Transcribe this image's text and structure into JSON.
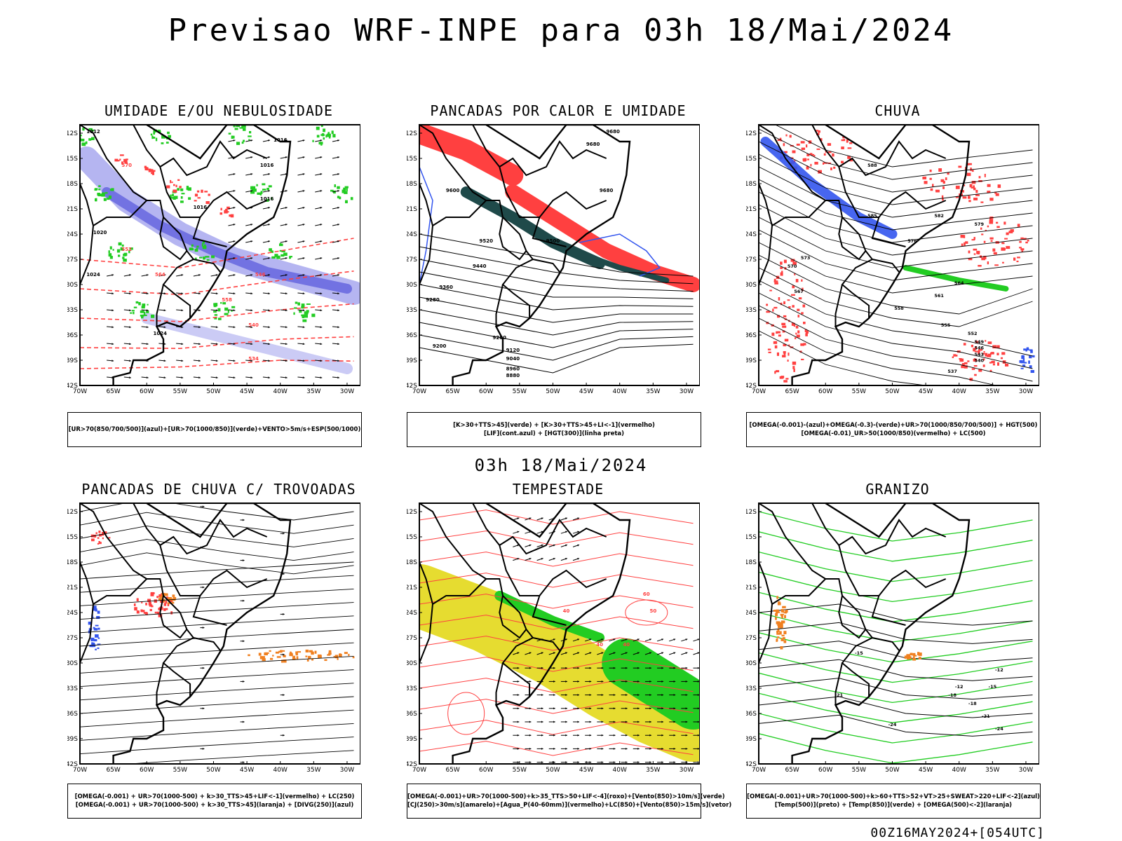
{
  "header": {
    "title": "Previsao WRF-INPE  para 03h 18/Mai/2024"
  },
  "mid_label": "03h 18/Mai/2024",
  "footer": "00Z16MAY2024+[054UTC]",
  "colors": {
    "green": "#22cc22",
    "red": "#ff4040",
    "blue": "#3355ee",
    "lavender": "#a8a8ee",
    "teal": "#1f4a4a",
    "orange": "#f08020",
    "yellow": "#e6dc30",
    "black": "#000000"
  },
  "axes": {
    "lat_labels": [
      "12S",
      "15S",
      "18S",
      "21S",
      "24S",
      "27S",
      "30S",
      "33S",
      "36S",
      "39S",
      "42S"
    ],
    "lon_labels": [
      "70W",
      "65W",
      "60W",
      "55W",
      "50W",
      "45W",
      "40W",
      "35W",
      "30W"
    ]
  },
  "panels": [
    {
      "id": "umidade",
      "title": "UMIDADE E/OU NEBULOSIDADE",
      "legend": [
        "[UR>70(850/700/500)](azul)+[UR>70(1000/850)](verde)+VENTO>5m/s+ESP(500/1000)"
      ],
      "contour_labels": [
        "1016",
        "1016",
        "1016",
        "1016",
        "1012",
        "1020",
        "1024",
        "1024",
        "570",
        "552",
        "564",
        "546",
        "558",
        "540",
        "534"
      ]
    },
    {
      "id": "pancadas",
      "title": "PANCADAS POR CALOR E UMIDADE",
      "legend": [
        "[K>30+TTS>45](verde) + [K>30+TTS>45+LI<-1](vermelho)",
        "[LIF](cont.azul) + [HGT(300)](linha preta)"
      ],
      "contour_labels": [
        "9680",
        "9680",
        "9680",
        "9600",
        "9520",
        "9440",
        "9360",
        "9280",
        "9200",
        "9120",
        "9040",
        "8960",
        "8880",
        "9500",
        "9200"
      ]
    },
    {
      "id": "chuva",
      "title": "CHUVA",
      "legend": [
        "[OMEGA(-0.001)-(azul)+OMEGA(-0.3)-(verde)+UR>70(1000/850/700/500)] + HGT(500)",
        "[OMEGA(-0.01)_UR>50(1000/850)(vermelho) + LC(500)"
      ],
      "contour_labels": [
        "588",
        "585",
        "582",
        "579",
        "576",
        "573",
        "570",
        "567",
        "564",
        "561",
        "558",
        "555",
        "552",
        "549",
        "546",
        "543",
        "540",
        "537"
      ]
    },
    {
      "id": "trovoadas",
      "title": "PANCADAS DE CHUVA C/ TROVOADAS",
      "legend": [
        "[OMEGA(-0.001) + UR>70(1000-500) + k>30_TTS>45+LIF<-1](vermelho) + LC(250)",
        "[OMEGA(-0.001) + UR>70(1000-500) + k>30_TTS>45](laranja) + [DIVG(250)](azul)"
      ],
      "contour_labels": []
    },
    {
      "id": "tempestade",
      "title": "TEMPESTADE",
      "legend": [
        "[OMEGA(-0.001)+UR>70(1000-500)+k>35_TTS>50+LIF<-4](roxo)+[Vento(850)>10m/s](verde)",
        "[CJ(250)>30m/s](amarelo)+[Agua_P(40-60mm)](vermelho)+LC(850)+[Vento(850)>15m/s](vetor)"
      ],
      "contour_labels": [
        "40",
        "40",
        "40",
        "60",
        "50"
      ]
    },
    {
      "id": "granizo",
      "title": "GRANIZO",
      "legend": [
        "[OMEGA(-0.001)+UR>70(1000-500)+k>60+TTS>52+VT>25+SWEAT>220+LIF<-2](azul)",
        "[Temp(500)](preto) + [Temp(850)](verde) + [OMEGA(500)<-2](laranja)"
      ],
      "contour_labels": [
        "-15",
        "-12",
        "-15",
        "-18",
        "-21",
        "-24",
        "-12",
        "-18",
        "-21",
        "-24"
      ]
    }
  ]
}
